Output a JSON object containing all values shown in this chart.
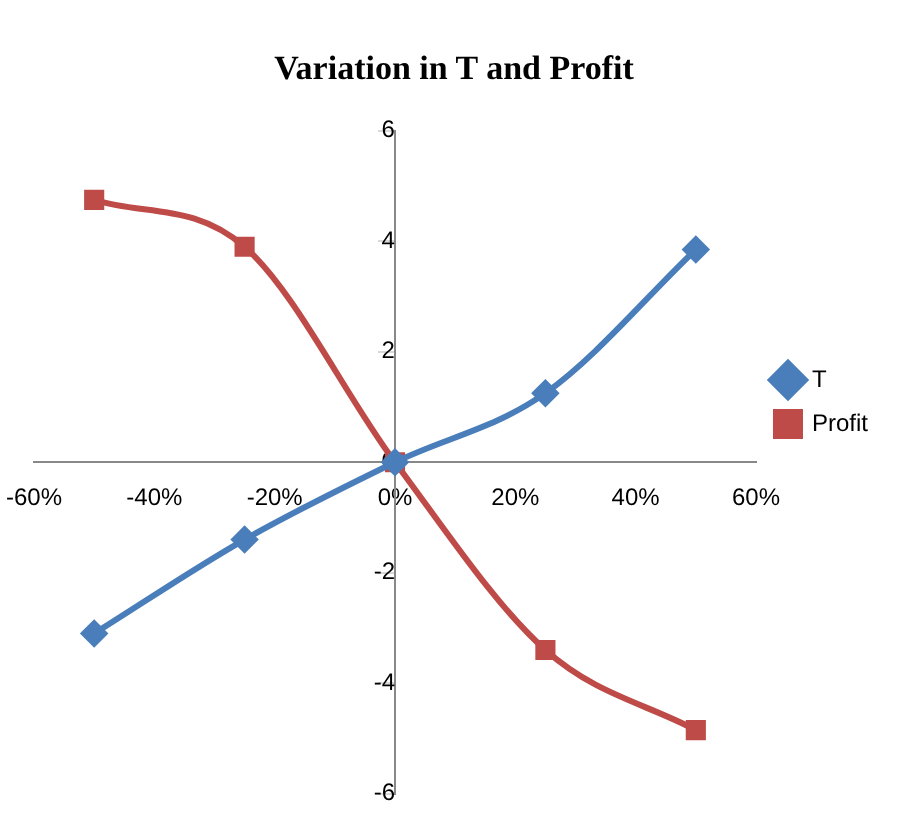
{
  "chart_data": {
    "type": "line",
    "title": "Variation in T and Profit",
    "x": [
      -50,
      -25,
      0,
      25,
      50
    ],
    "series": [
      {
        "name": "T",
        "color": "#4a7ebb",
        "values": [
          -3.1,
          -1.4,
          0,
          1.25,
          3.85
        ],
        "marker": "diamond"
      },
      {
        "name": "Profit",
        "color": "#be4b48",
        "values": [
          4.75,
          3.9,
          0,
          -3.4,
          -4.85
        ],
        "marker": "square"
      }
    ],
    "xlim": [
      -60,
      60
    ],
    "xticks": [
      {
        "value": -60,
        "label": "-60%"
      },
      {
        "value": -40,
        "label": "-40%"
      },
      {
        "value": -20,
        "label": "-20%"
      },
      {
        "value": 0,
        "label": "0%"
      },
      {
        "value": 20,
        "label": "20%"
      },
      {
        "value": 40,
        "label": "40%"
      },
      {
        "value": 60,
        "label": "60%"
      }
    ],
    "ylim": [
      -6,
      6
    ],
    "yticks": [
      -6,
      -4,
      -2,
      0,
      2,
      4,
      6
    ],
    "grid": false,
    "legend": "right"
  }
}
